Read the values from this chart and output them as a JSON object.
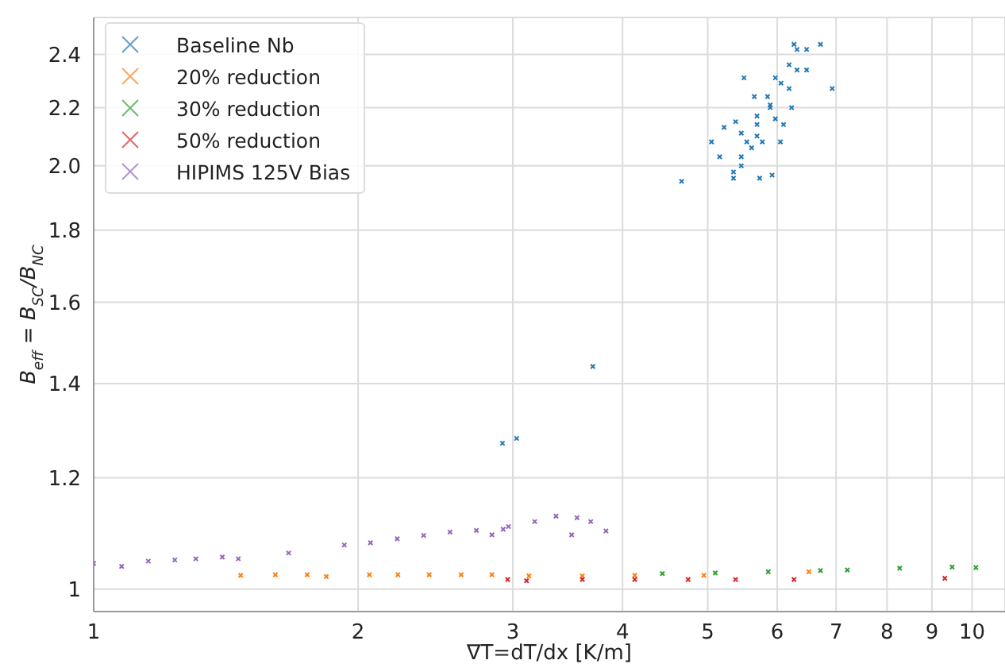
{
  "chart_data": {
    "type": "scatter",
    "xlabel": "∇T=dT/dx [K/m]",
    "ylabel": "B$_{eff}$ = B$_{SC}$/B$_{NC}$",
    "log": "xy",
    "grid": true,
    "legend": "top left",
    "marker": "cross",
    "xlim": [
      1,
      10.9
    ],
    "xticks": [
      1,
      2,
      3,
      4,
      5,
      6,
      7,
      8,
      9,
      10
    ],
    "ylim": [
      0.964,
      2.55
    ],
    "yticks": [
      1,
      1.2,
      1.4,
      1.6,
      1.8,
      {
        "value": 2,
        "label": "2.0"
      },
      2.2,
      2.4
    ],
    "series": [
      {
        "name": "Baseline Nb",
        "color": "#1f77b4",
        "x": [
          6.27,
          6.72,
          6.32,
          6.48,
          6.19,
          6.32,
          6.48,
          5.5,
          5.97,
          6.06,
          6.19,
          6.93,
          5.65,
          5.85,
          5.89,
          6.23,
          5.89,
          5.69,
          5.97,
          6.1,
          5.38,
          5.69,
          5.22,
          5.46,
          5.69,
          5.54,
          5.77,
          5.05,
          6.05,
          5.61,
          5.46,
          5.16,
          5.46,
          5.35,
          5.35,
          5.73,
          5.92,
          4.67,
          3.7,
          2.92,
          3.03
        ],
        "values": [
          2.44,
          2.44,
          2.42,
          2.42,
          2.36,
          2.34,
          2.34,
          2.31,
          2.31,
          2.29,
          2.27,
          2.27,
          2.24,
          2.24,
          2.21,
          2.2,
          2.2,
          2.17,
          2.16,
          2.14,
          2.15,
          2.14,
          2.13,
          2.11,
          2.1,
          2.08,
          2.08,
          2.08,
          2.08,
          2.06,
          2.03,
          2.03,
          2,
          1.98,
          1.96,
          1.96,
          1.97,
          1.95,
          1.44,
          1.27,
          1.28
        ]
      },
      {
        "name": "20% reduction",
        "color": "#ff7f0e",
        "x": [
          1.47,
          1.61,
          1.75,
          1.84,
          2.06,
          2.22,
          2.41,
          2.62,
          2.84,
          3.13,
          3.6,
          4.13,
          4.95,
          6.52
        ],
        "values": [
          1.023,
          1.024,
          1.024,
          1.021,
          1.024,
          1.024,
          1.024,
          1.024,
          1.024,
          1.022,
          1.022,
          1.023,
          1.023,
          1.029
        ]
      },
      {
        "name": "30% reduction",
        "color": "#2ca02c",
        "x": [
          4.44,
          5.1,
          5.86,
          6.72,
          7.21,
          8.27,
          9.49,
          10.1
        ],
        "values": [
          1.026,
          1.027,
          1.029,
          1.031,
          1.032,
          1.035,
          1.037,
          1.036
        ]
      },
      {
        "name": "50% reduction",
        "color": "#d62728",
        "x": [
          2.96,
          3.11,
          3.6,
          4.13,
          4.75,
          5.38,
          6.27,
          9.31
        ],
        "values": [
          1.016,
          1.014,
          1.016,
          1.016,
          1.016,
          1.016,
          1.016,
          1.018
        ]
      },
      {
        "name": "HIPIMS 125V Bias",
        "color": "#9467bd",
        "x": [
          1.0,
          1.076,
          1.154,
          1.237,
          1.307,
          1.401,
          1.461,
          1.667,
          1.929,
          2.066,
          2.216,
          2.375,
          2.545,
          2.727,
          2.925,
          2.84,
          2.966,
          3.177,
          3.36,
          3.55,
          3.68,
          3.83,
          3.5
        ],
        "values": [
          1.043,
          1.038,
          1.047,
          1.049,
          1.051,
          1.054,
          1.051,
          1.061,
          1.075,
          1.079,
          1.086,
          1.092,
          1.098,
          1.101,
          1.103,
          1.093,
          1.108,
          1.117,
          1.127,
          1.124,
          1.117,
          1.1,
          1.093
        ]
      }
    ]
  }
}
